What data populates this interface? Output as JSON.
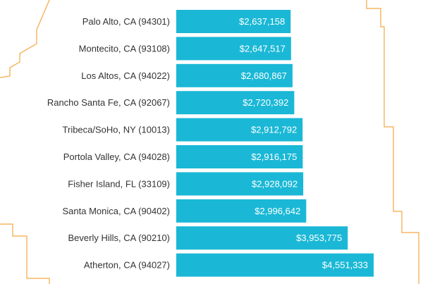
{
  "chart_data": {
    "type": "bar",
    "orientation": "horizontal",
    "categories": [
      "Palo Alto, CA (94301)",
      "Montecito, CA (93108)",
      "Los Altos, CA (94022)",
      "Rancho Santa Fe, CA (92067)",
      "Tribeca/SoHo, NY (10013)",
      "Portola Valley, CA (94028)",
      "Fisher Island, FL (33109)",
      "Santa Monica, CA (90402)",
      "Beverly Hills, CA (90210)",
      "Atherton, CA (94027)"
    ],
    "values": [
      2637158,
      2647517,
      2680867,
      2720392,
      2912792,
      2916175,
      2928092,
      2996642,
      3953775,
      4551333
    ],
    "value_labels": [
      "$2,637,158",
      "$2,647,517",
      "$2,680,867",
      "$2,720,392",
      "$2,912,792",
      "$2,916,175",
      "$2,928,092",
      "$2,996,642",
      "$3,953,775",
      "$4,551,333"
    ],
    "title": "",
    "xlabel": "",
    "ylabel": "",
    "grid": false,
    "legend": "none"
  },
  "colors": {
    "bar": "#1ab8d6",
    "bar_label": "#ffffff",
    "category_label": "#333333",
    "outline": "#f5a742"
  }
}
